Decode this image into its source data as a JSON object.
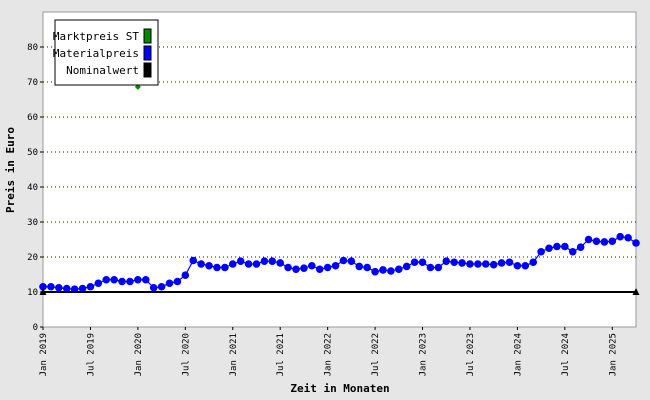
{
  "chart_data": {
    "type": "line",
    "xlabel": "Zeit in Monaten",
    "ylabel": "Preis in Euro",
    "x": [
      "2019-01",
      "2019-02",
      "2019-03",
      "2019-04",
      "2019-05",
      "2019-06",
      "2019-07",
      "2019-08",
      "2019-09",
      "2019-10",
      "2019-11",
      "2019-12",
      "2020-01",
      "2020-02",
      "2020-03",
      "2020-04",
      "2020-05",
      "2020-06",
      "2020-07",
      "2020-08",
      "2020-09",
      "2020-10",
      "2020-11",
      "2020-12",
      "2021-01",
      "2021-02",
      "2021-03",
      "2021-04",
      "2021-05",
      "2021-06",
      "2021-07",
      "2021-08",
      "2021-09",
      "2021-10",
      "2021-11",
      "2021-12",
      "2022-01",
      "2022-02",
      "2022-03",
      "2022-04",
      "2022-05",
      "2022-06",
      "2022-07",
      "2022-08",
      "2022-09",
      "2022-10",
      "2022-11",
      "2022-12",
      "2023-01",
      "2023-02",
      "2023-03",
      "2023-04",
      "2023-05",
      "2023-06",
      "2023-07",
      "2023-08",
      "2023-09",
      "2023-10",
      "2023-11",
      "2023-12",
      "2024-01",
      "2024-02",
      "2024-03",
      "2024-04",
      "2024-05",
      "2024-06",
      "2024-07",
      "2024-08",
      "2024-09",
      "2024-10",
      "2024-11",
      "2024-12",
      "2025-01",
      "2025-02",
      "2025-03",
      "2025-04"
    ],
    "series": [
      {
        "name": "Marktpreis ST",
        "color": "#008800",
        "marker": "diamond",
        "line": false,
        "values": [
          null,
          null,
          null,
          null,
          null,
          null,
          null,
          null,
          null,
          null,
          null,
          null,
          68.6,
          null,
          null,
          null,
          null,
          null,
          null,
          null,
          null,
          null,
          null,
          null,
          null,
          null,
          null,
          null,
          null,
          null,
          null,
          null,
          null,
          null,
          null,
          null,
          null,
          null,
          null,
          null,
          null,
          null,
          null,
          null,
          null,
          null,
          null,
          null,
          null,
          null,
          null,
          null,
          null,
          null,
          null,
          null,
          null,
          null,
          null,
          null,
          null,
          null,
          null,
          null,
          null,
          null,
          null,
          null,
          null,
          null,
          null,
          null,
          null,
          null,
          null,
          null
        ]
      },
      {
        "name": "Materialpreis",
        "color": "#0000ff",
        "marker": "circle",
        "line": true,
        "values": [
          11.5,
          11.5,
          11.2,
          11,
          10.8,
          11,
          11.5,
          12.5,
          13.5,
          13.5,
          13,
          13,
          13.5,
          13.5,
          11.2,
          11.5,
          12.5,
          13,
          14.8,
          19,
          18,
          17.5,
          17,
          17,
          18,
          18.8,
          18,
          18,
          18.8,
          18.8,
          18.3,
          17,
          16.5,
          16.8,
          17.5,
          16.5,
          17,
          17.5,
          19,
          18.8,
          17.3,
          17,
          15.8,
          16.3,
          16,
          16.5,
          17.3,
          18.5,
          18.5,
          17,
          17,
          18.8,
          18.5,
          18.3,
          18,
          18,
          18,
          17.8,
          18.3,
          18.5,
          17.5,
          17.5,
          18.5,
          21.5,
          22.5,
          23,
          23,
          21.5,
          22.8,
          25,
          24.5,
          24.3,
          24.5,
          25.8,
          25.5,
          24
        ]
      },
      {
        "name": "Nominalwert",
        "color": "#000000",
        "marker": "triangle",
        "line": true,
        "values": [
          10,
          null,
          null,
          null,
          null,
          null,
          null,
          null,
          null,
          null,
          null,
          null,
          null,
          null,
          null,
          null,
          null,
          null,
          null,
          null,
          null,
          null,
          null,
          null,
          null,
          null,
          null,
          null,
          null,
          null,
          null,
          null,
          null,
          null,
          null,
          null,
          null,
          null,
          null,
          null,
          null,
          null,
          null,
          null,
          null,
          null,
          null,
          null,
          null,
          null,
          null,
          null,
          null,
          null,
          null,
          null,
          null,
          null,
          null,
          null,
          null,
          null,
          null,
          null,
          null,
          null,
          null,
          null,
          null,
          null,
          null,
          null,
          null,
          null,
          null,
          10
        ]
      }
    ],
    "xticks": [
      {
        "value": "2019-01",
        "label": "Jan 2019"
      },
      {
        "value": "2019-07",
        "label": "Jul 2019"
      },
      {
        "value": "2020-01",
        "label": "Jan 2020"
      },
      {
        "value": "2020-07",
        "label": "Jul 2020"
      },
      {
        "value": "2021-01",
        "label": "Jan 2021"
      },
      {
        "value": "2021-07",
        "label": "Jul 2021"
      },
      {
        "value": "2022-01",
        "label": "Jan 2022"
      },
      {
        "value": "2022-07",
        "label": "Jul 2022"
      },
      {
        "value": "2023-01",
        "label": "Jan 2023"
      },
      {
        "value": "2023-07",
        "label": "Jul 2023"
      },
      {
        "value": "2024-01",
        "label": "Jan 2024"
      },
      {
        "value": "2024-07",
        "label": "Jul 2024"
      },
      {
        "value": "2025-01",
        "label": "Jan 2025"
      }
    ],
    "ylim": [
      0,
      90
    ],
    "yticks": [
      0,
      10,
      20,
      30,
      40,
      50,
      60,
      70,
      80
    ],
    "grid": true,
    "legend": "upper left"
  }
}
